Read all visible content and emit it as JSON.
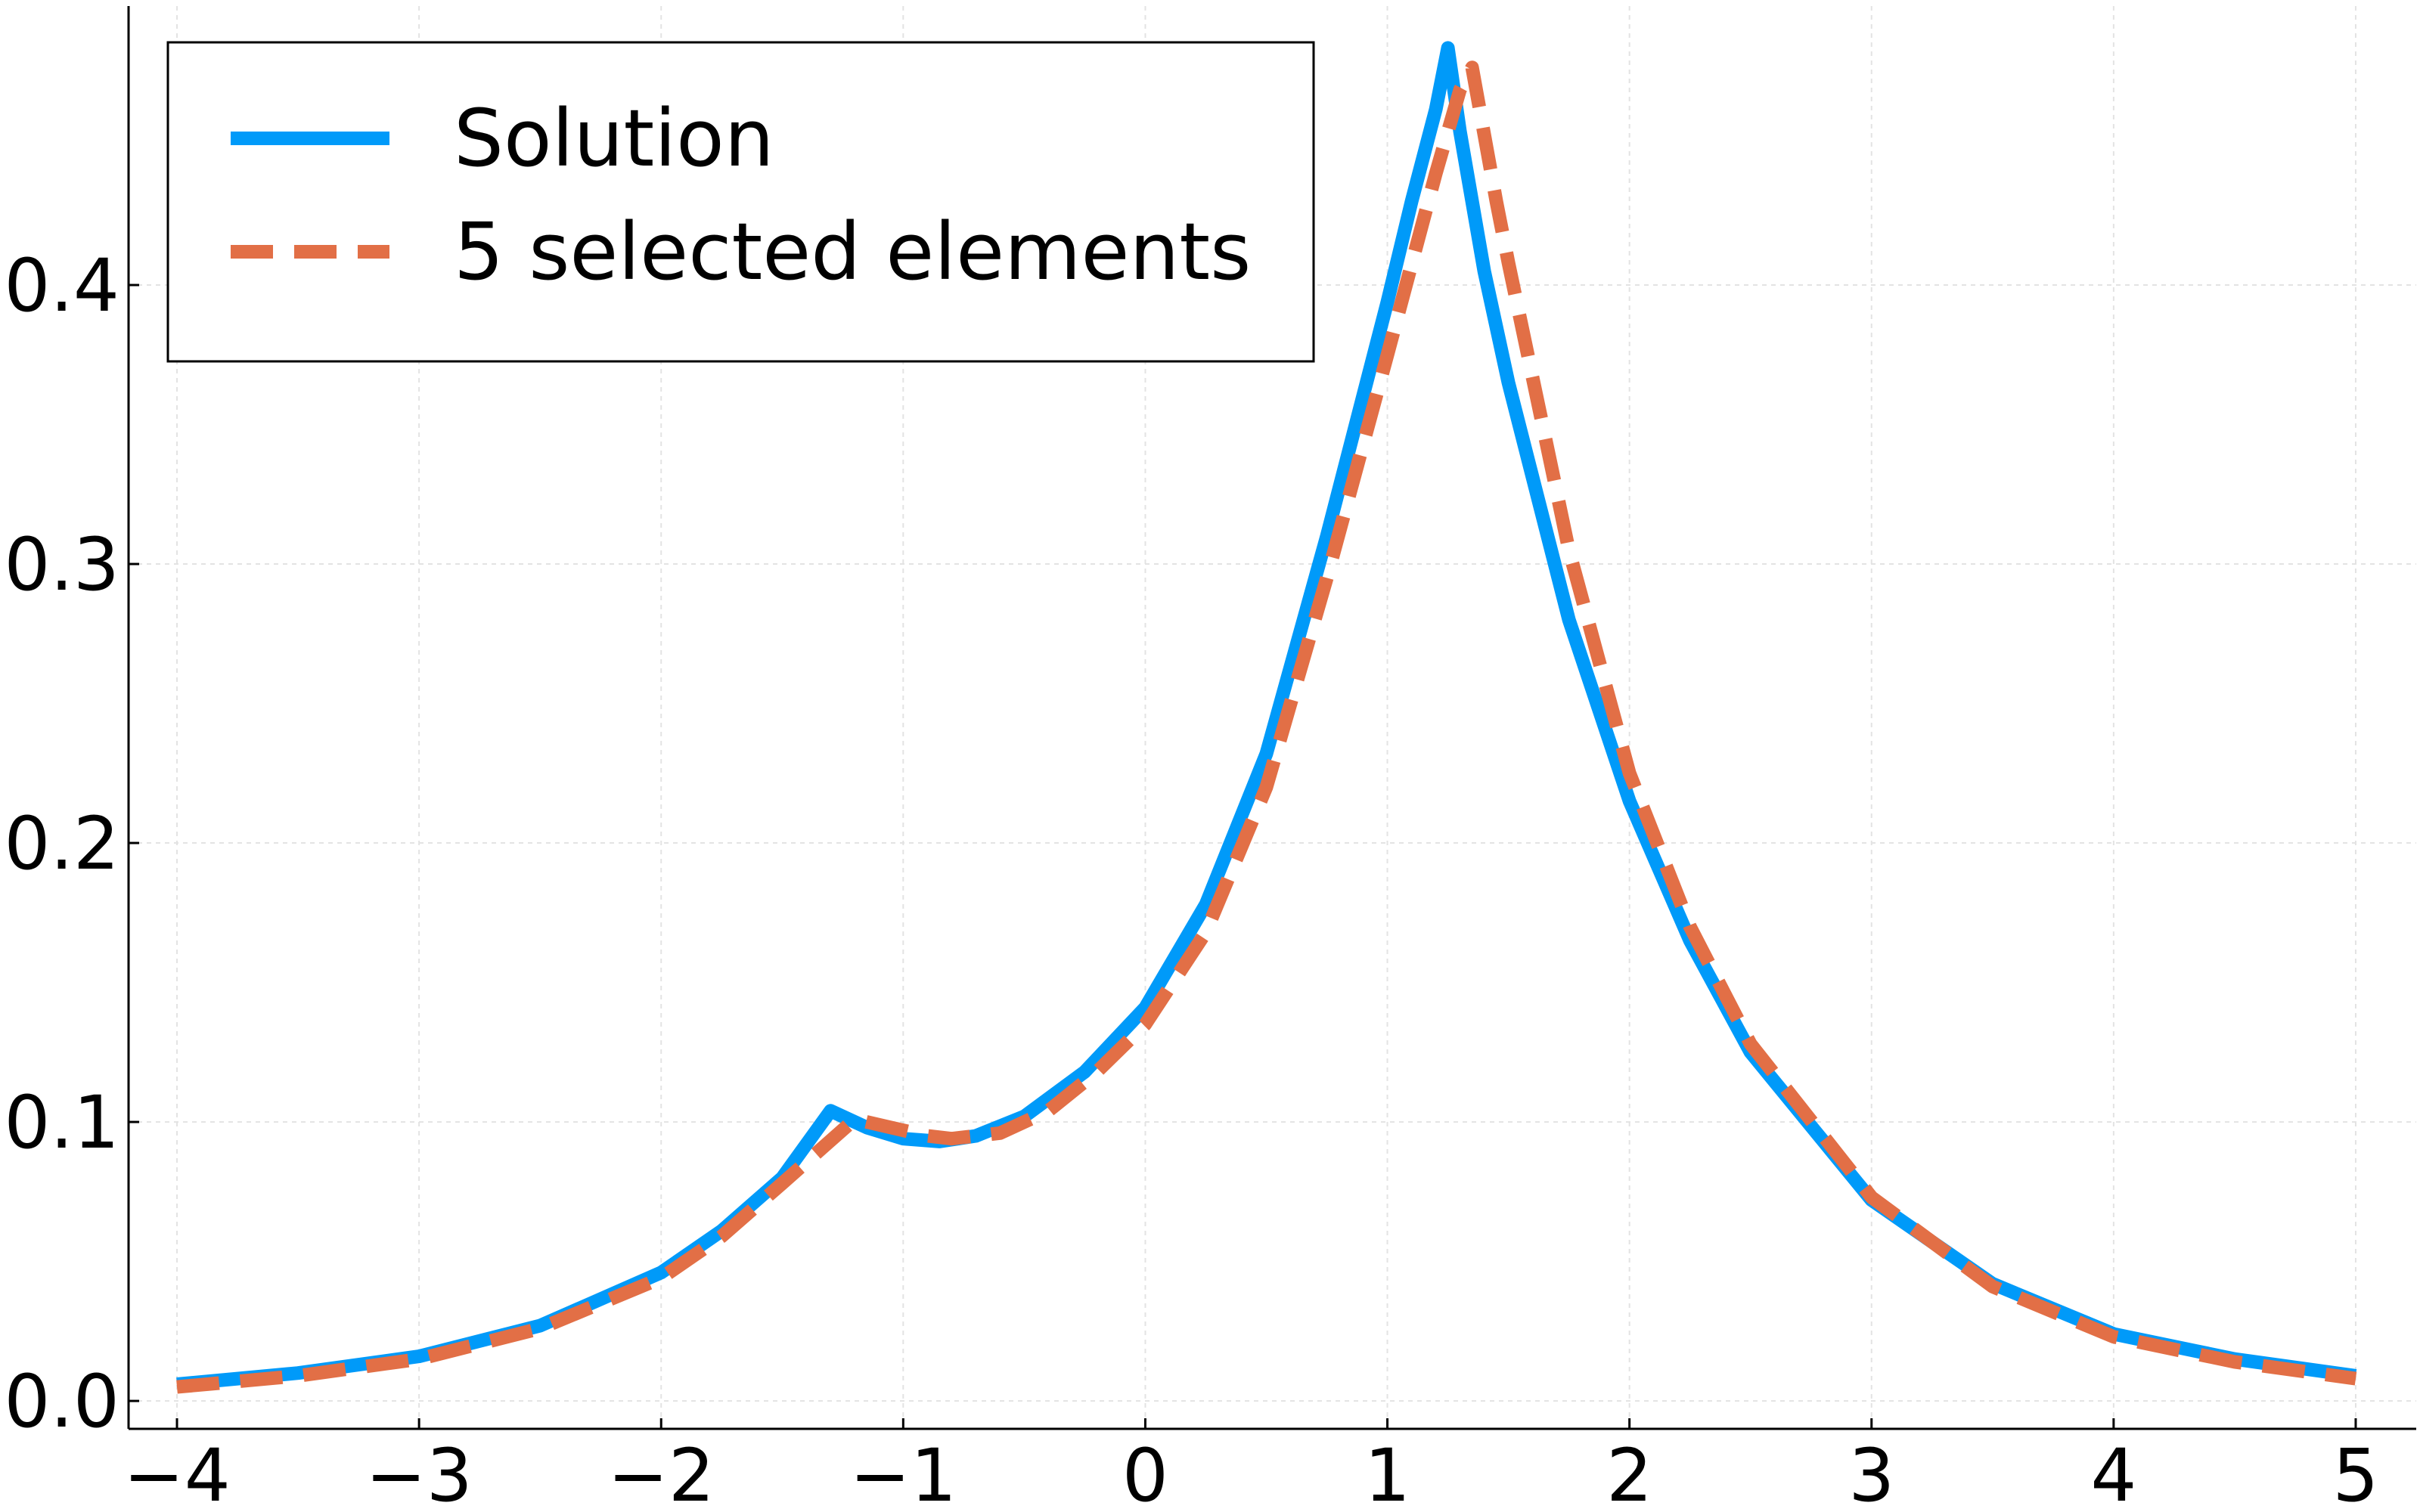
{
  "chart_data": {
    "type": "line",
    "title": "",
    "xlabel": "",
    "ylabel": "",
    "xlim": [
      -4.2,
      5.25
    ],
    "ylim": [
      -0.01,
      0.5
    ],
    "grid": true,
    "legend_position": "top-left",
    "x_ticks": [
      {
        "value": -4,
        "label": "−4"
      },
      {
        "value": -3,
        "label": "−3"
      },
      {
        "value": -2,
        "label": "−2"
      },
      {
        "value": -1,
        "label": "−1"
      },
      {
        "value": 0,
        "label": "0"
      },
      {
        "value": 1,
        "label": "1"
      },
      {
        "value": 2,
        "label": "2"
      },
      {
        "value": 3,
        "label": "3"
      },
      {
        "value": 4,
        "label": "4"
      },
      {
        "value": 5,
        "label": "5"
      }
    ],
    "y_ticks": [
      {
        "value": 0.0,
        "label": "0.0"
      },
      {
        "value": 0.1,
        "label": "0.1"
      },
      {
        "value": 0.2,
        "label": "0.2"
      },
      {
        "value": 0.3,
        "label": "0.3"
      },
      {
        "value": 0.4,
        "label": "0.4"
      }
    ],
    "series": [
      {
        "name": "Solution",
        "color": "#009af9",
        "line_style": "solid",
        "x": [
          -4.0,
          -3.5,
          -3.0,
          -2.5,
          -2.0,
          -1.75,
          -1.5,
          -1.3,
          -1.15,
          -1.0,
          -0.85,
          -0.7,
          -0.5,
          -0.25,
          0.0,
          0.25,
          0.5,
          0.75,
          1.0,
          1.1,
          1.2,
          1.25,
          1.3,
          1.4,
          1.5,
          1.75,
          2.0,
          2.25,
          2.5,
          3.0,
          3.5,
          4.0,
          4.5,
          5.0
        ],
        "y": [
          0.006,
          0.01,
          0.016,
          0.027,
          0.046,
          0.061,
          0.08,
          0.104,
          0.098,
          0.094,
          0.093,
          0.095,
          0.102,
          0.118,
          0.141,
          0.178,
          0.232,
          0.31,
          0.394,
          0.43,
          0.463,
          0.485,
          0.455,
          0.405,
          0.365,
          0.28,
          0.215,
          0.165,
          0.125,
          0.072,
          0.042,
          0.024,
          0.015,
          0.009
        ]
      },
      {
        "name": "5 selected elements",
        "color": "#e26f46",
        "line_style": "dashed",
        "x": [
          -4.0,
          -3.5,
          -3.0,
          -2.5,
          -2.0,
          -1.75,
          -1.5,
          -1.2,
          -1.05,
          -0.9,
          -0.8,
          -0.6,
          -0.4,
          -0.2,
          0.0,
          0.25,
          0.5,
          0.75,
          1.0,
          1.2,
          1.3,
          1.35,
          1.45,
          1.5,
          1.75,
          2.0,
          2.25,
          2.5,
          3.0,
          3.5,
          4.0,
          4.5,
          5.0
        ],
        "y": [
          0.005,
          0.009,
          0.015,
          0.026,
          0.044,
          0.059,
          0.078,
          0.101,
          0.098,
          0.095,
          0.094,
          0.096,
          0.104,
          0.118,
          0.135,
          0.168,
          0.22,
          0.295,
          0.375,
          0.44,
          0.47,
          0.478,
          0.43,
          0.408,
          0.305,
          0.225,
          0.17,
          0.128,
          0.073,
          0.041,
          0.023,
          0.014,
          0.008
        ]
      }
    ]
  }
}
